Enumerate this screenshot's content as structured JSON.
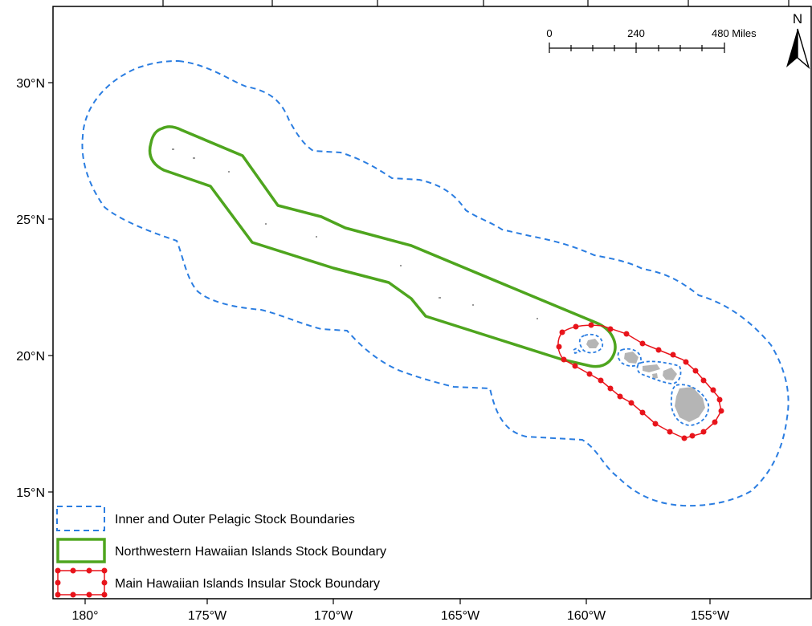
{
  "axes": {
    "latitude_labels": [
      "30°N",
      "25°N",
      "20°N",
      "15°N"
    ],
    "longitude_labels": [
      "180°",
      "175°W",
      "170°W",
      "165°W",
      "160°W",
      "155°W"
    ]
  },
  "scale_bar": {
    "labels": [
      "0",
      "240",
      "480 Miles"
    ]
  },
  "north_arrow": {
    "label": "N"
  },
  "legend": {
    "items": [
      {
        "label": "Inner and Outer Pelagic Stock Boundaries",
        "color": "#2a7de1",
        "style": "dashed"
      },
      {
        "label": "Northwestern Hawaiian Islands Stock Boundary",
        "color": "#4ea51e",
        "style": "solid"
      },
      {
        "label": "Main Hawaiian Islands Insular Stock Boundary",
        "color": "#e8141b",
        "style": "dotted"
      }
    ]
  },
  "colors": {
    "pelagic_boundary": "#2a7de1",
    "nwhi_boundary": "#4ea51e",
    "mhi_boundary": "#e8141b",
    "land": "#b5b5b5"
  }
}
